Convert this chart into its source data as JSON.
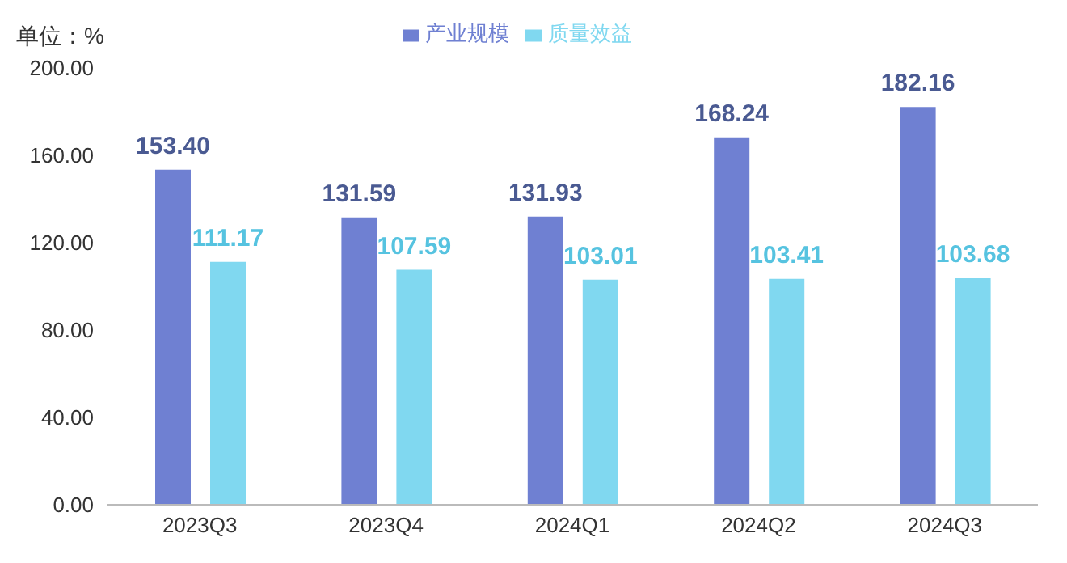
{
  "chart_data": {
    "type": "bar",
    "ylabel": "单位：%",
    "categories": [
      "2023Q3",
      "2023Q4",
      "2024Q1",
      "2024Q2",
      "2024Q3"
    ],
    "series": [
      {
        "name": "产业规模",
        "color": "#6f80d2",
        "values": [
          153.4,
          131.59,
          131.93,
          168.24,
          182.16
        ],
        "value_labels": [
          "153.40",
          "131.59",
          "131.93",
          "168.24",
          "182.16"
        ]
      },
      {
        "name": "质量效益",
        "color": "#80d8f0",
        "values": [
          111.17,
          107.59,
          103.01,
          103.41,
          103.68
        ],
        "value_labels": [
          "111.17",
          "107.59",
          "103.01",
          "103.41",
          "103.68"
        ]
      }
    ],
    "ylim": [
      0,
      200
    ],
    "yticks": [
      {
        "value": 0,
        "label": "0.00"
      },
      {
        "value": 40,
        "label": "40.00"
      },
      {
        "value": 80,
        "label": "80.00"
      },
      {
        "value": 120,
        "label": "120.00"
      },
      {
        "value": 160,
        "label": "160.00"
      },
      {
        "value": 200,
        "label": "200.00"
      }
    ],
    "grid": false,
    "legend": "top"
  }
}
